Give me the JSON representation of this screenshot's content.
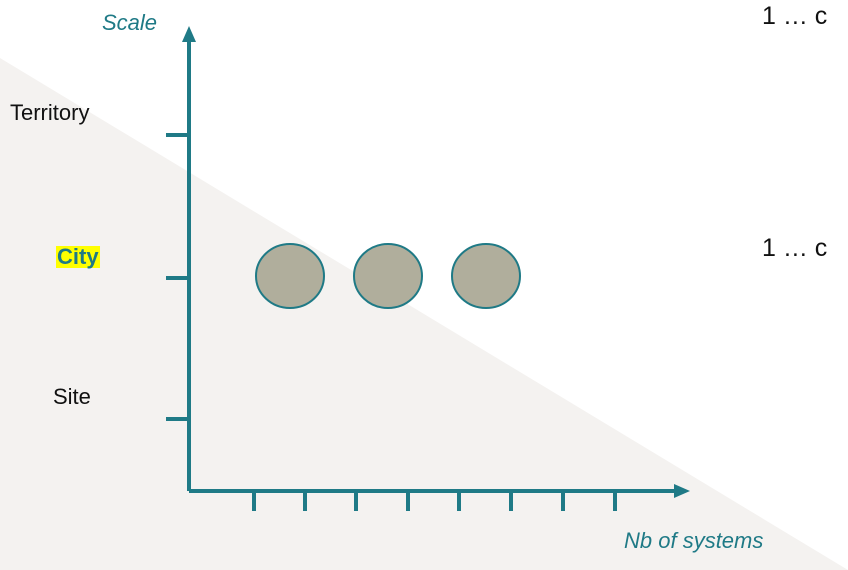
{
  "diagram": {
    "y_axis_title": "Scale",
    "x_axis_title": "Nb of systems",
    "y_ticks": [
      "Territory",
      "City",
      "Site"
    ],
    "highlighted_tick": "City",
    "side_text": [
      "1 … c",
      "1 … c"
    ],
    "systems_shown_at_city": 3,
    "colors": {
      "axis": "#1f7a86",
      "circle_fill": "#b0ae9c",
      "circle_stroke": "#1f7a86",
      "highlight": "#ffff00",
      "background_shade": "#f4f2f0"
    }
  }
}
